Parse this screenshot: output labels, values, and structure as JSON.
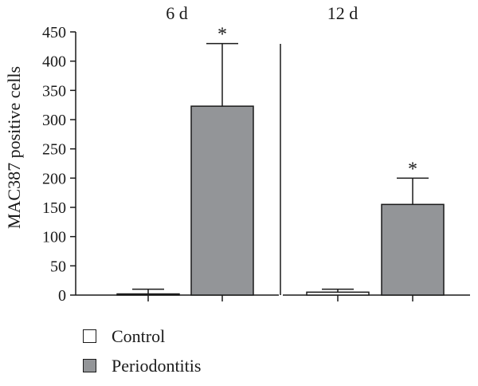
{
  "chart_data": {
    "type": "bar",
    "ylabel": "MAC387 positive cells",
    "ylim": [
      0,
      450
    ],
    "yticks": [
      0,
      50,
      100,
      150,
      200,
      250,
      300,
      350,
      400,
      450
    ],
    "grid": false,
    "legend_position": "bottom-left",
    "panels": [
      {
        "label": "6 d",
        "series": [
          {
            "name": "Control",
            "value": 2,
            "error": 8,
            "significance": ""
          },
          {
            "name": "Periodontitis",
            "value": 323,
            "error": 107,
            "significance": "*"
          }
        ]
      },
      {
        "label": "12 d",
        "series": [
          {
            "name": "Control",
            "value": 5,
            "error": 5,
            "significance": ""
          },
          {
            "name": "Periodontitis",
            "value": 155,
            "error": 45,
            "significance": "*"
          }
        ]
      }
    ]
  },
  "legend": {
    "items": [
      {
        "label": "Control",
        "color": "#ffffff"
      },
      {
        "label": "Periodontitis",
        "color": "#939598"
      }
    ]
  }
}
